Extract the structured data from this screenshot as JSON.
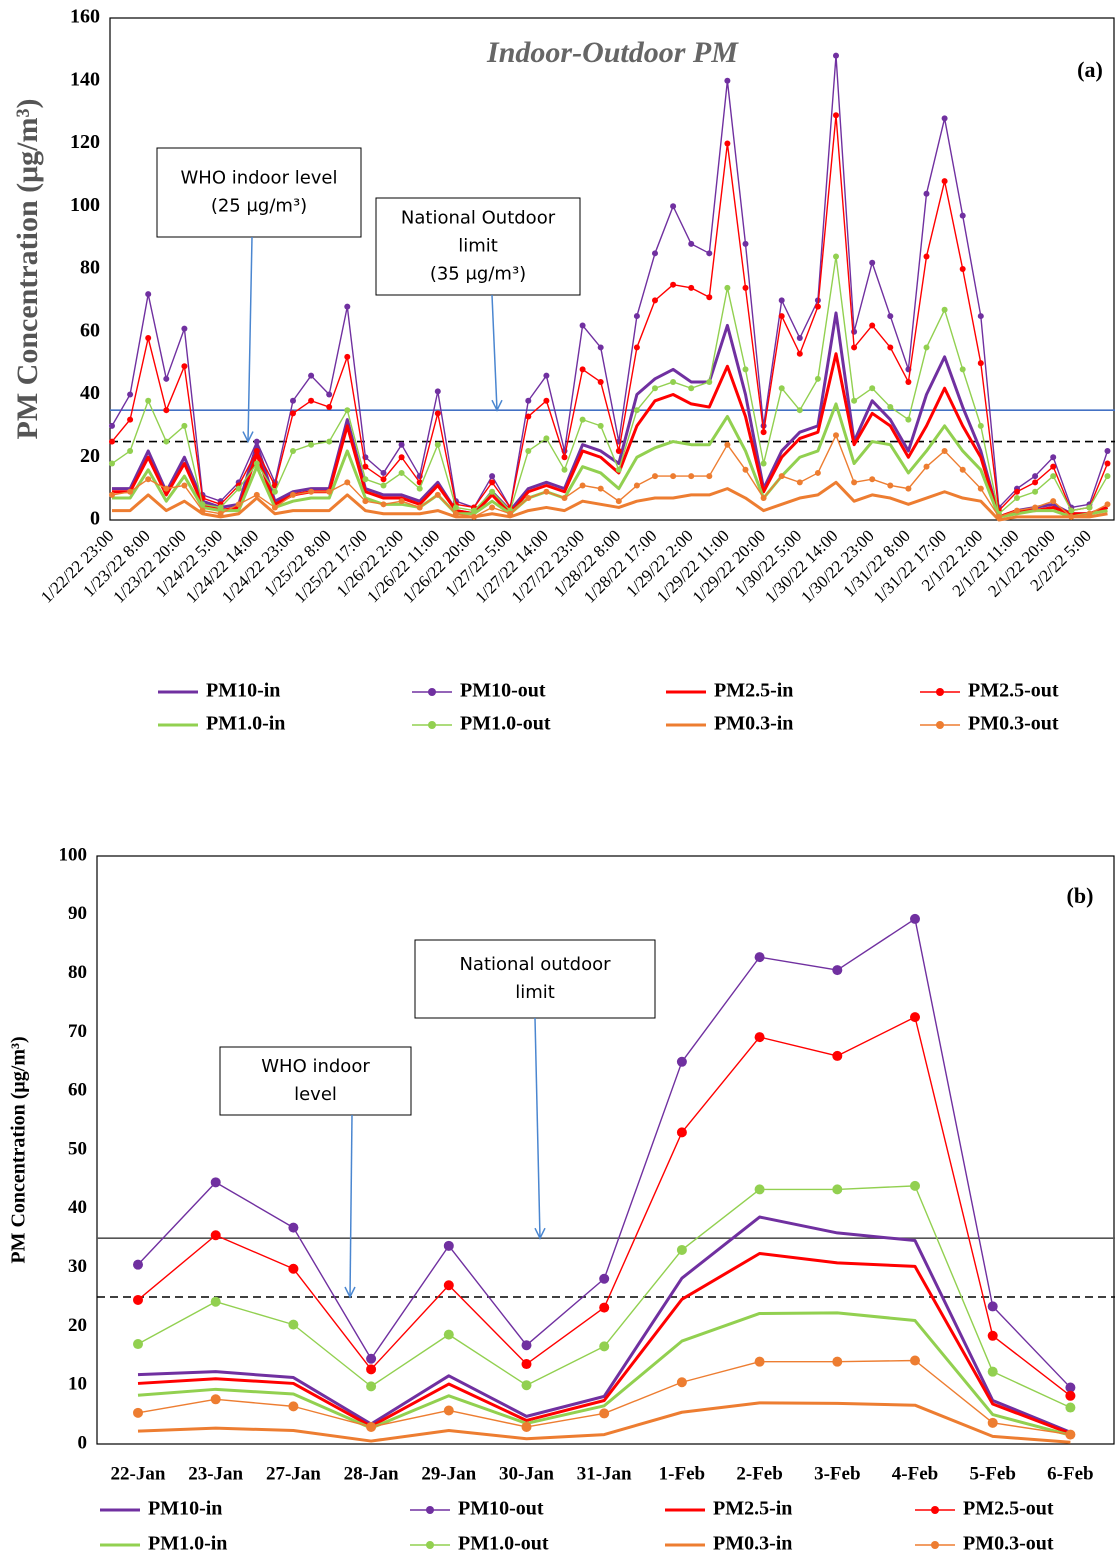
{
  "chart_data": [
    {
      "type": "line",
      "title": "Indoor-Outdoor PM",
      "panel_label": "(a)",
      "y_label": "PM Concentration (μg/m³)",
      "categories": [
        "1/22/22 23:00",
        null,
        "1/23/22 8:00",
        null,
        "1/23/22 20:00",
        null,
        "1/24/22 5:00",
        null,
        "1/24/22 14:00",
        null,
        "1/24/22 23:00",
        null,
        "1/25/22 8:00",
        null,
        "1/25/22 17:00",
        null,
        "1/26/22 2:00",
        null,
        "1/26/22 11:00",
        null,
        "1/26/22 20:00",
        null,
        "1/27/22 5:00",
        null,
        "1/27/22 14:00",
        null,
        "1/27/22 23:00",
        null,
        "1/28/22 8:00",
        null,
        "1/28/22 17:00",
        null,
        "1/29/22 2:00",
        null,
        "1/29/22 11:00",
        null,
        "1/29/22 20:00",
        null,
        "1/30/22 5:00",
        null,
        "1/30/22 14:00",
        null,
        "1/30/22 23:00",
        null,
        "1/31/22 8:00",
        null,
        "1/31/22 17:00",
        null,
        "2/1/22 2:00",
        null,
        "2/1/22 11:00",
        null,
        "2/1/22 20:00",
        null,
        "2/2/22 5:00",
        null
      ],
      "series": [
        {
          "name": "PM10-in",
          "color": "#7030a0",
          "marker": false,
          "values": [
            10,
            10,
            22,
            9,
            20,
            6,
            4,
            5,
            24,
            6,
            9,
            10,
            10,
            32,
            10,
            8,
            8,
            6,
            12,
            3,
            2,
            9,
            3,
            10,
            12,
            10,
            24,
            22,
            18,
            40,
            45,
            48,
            44,
            44,
            62,
            40,
            10,
            22,
            28,
            30,
            66,
            25,
            38,
            32,
            22,
            40,
            52,
            36,
            22,
            1,
            3,
            4,
            5,
            2,
            2,
            4
          ]
        },
        {
          "name": "PM10-out",
          "color": "#7030a0",
          "marker": true,
          "values": [
            30,
            40,
            72,
            45,
            61,
            8,
            6,
            12,
            25,
            12,
            38,
            46,
            40,
            68,
            20,
            15,
            24,
            14,
            41,
            6,
            4,
            14,
            4,
            38,
            46,
            22,
            62,
            55,
            25,
            65,
            85,
            100,
            88,
            85,
            140,
            88,
            30,
            70,
            58,
            70,
            148,
            60,
            82,
            65,
            48,
            104,
            128,
            97,
            65,
            4,
            10,
            14,
            20,
            4,
            5,
            22
          ]
        },
        {
          "name": "PM2.5-in",
          "color": "#ff0000",
          "marker": false,
          "values": [
            9,
            9,
            20,
            8,
            18,
            5,
            3,
            4,
            21,
            5,
            8,
            9,
            9,
            30,
            9,
            7,
            7,
            5,
            11,
            3,
            2,
            8,
            2,
            9,
            11,
            9,
            22,
            20,
            15,
            30,
            38,
            40,
            37,
            36,
            49,
            33,
            9,
            20,
            26,
            28,
            53,
            24,
            34,
            30,
            20,
            30,
            42,
            30,
            20,
            1,
            3,
            3,
            4,
            2,
            2,
            4
          ]
        },
        {
          "name": "PM2.5-out",
          "color": "#ff0000",
          "marker": true,
          "values": [
            25,
            32,
            58,
            35,
            49,
            7,
            5,
            11,
            22,
            11,
            34,
            38,
            36,
            52,
            17,
            13,
            20,
            12,
            34,
            5,
            4,
            12,
            4,
            33,
            38,
            20,
            48,
            44,
            22,
            55,
            70,
            75,
            74,
            71,
            120,
            74,
            28,
            65,
            53,
            68,
            129,
            55,
            62,
            55,
            44,
            84,
            108,
            80,
            50,
            3,
            9,
            12,
            17,
            3,
            4,
            18
          ]
        },
        {
          "name": "PM1.0-in",
          "color": "#92d050",
          "marker": false,
          "values": [
            7,
            7,
            16,
            6,
            14,
            4,
            3,
            3,
            17,
            4,
            6,
            7,
            7,
            22,
            7,
            5,
            5,
            4,
            8,
            2,
            2,
            6,
            2,
            7,
            9,
            7,
            17,
            15,
            10,
            20,
            23,
            25,
            24,
            24,
            33,
            22,
            7,
            14,
            20,
            22,
            37,
            18,
            25,
            24,
            15,
            22,
            30,
            22,
            16,
            1,
            2,
            3,
            3,
            1,
            2,
            3
          ]
        },
        {
          "name": "PM1.0-out",
          "color": "#92d050",
          "marker": true,
          "values": [
            18,
            22,
            38,
            25,
            30,
            5,
            4,
            10,
            18,
            9,
            22,
            24,
            25,
            35,
            13,
            11,
            15,
            10,
            24,
            4,
            3,
            9,
            3,
            22,
            26,
            16,
            32,
            30,
            16,
            35,
            42,
            44,
            42,
            44,
            74,
            48,
            18,
            42,
            35,
            45,
            84,
            38,
            42,
            36,
            32,
            55,
            67,
            48,
            30,
            2,
            7,
            9,
            14,
            3,
            4,
            14
          ]
        },
        {
          "name": "PM0.3-in",
          "color": "#ed7d31",
          "marker": false,
          "values": [
            3,
            3,
            8,
            3,
            6,
            2,
            1,
            2,
            7,
            2,
            3,
            3,
            3,
            8,
            3,
            2,
            2,
            2,
            3,
            1,
            1,
            2,
            1,
            3,
            4,
            3,
            6,
            5,
            4,
            6,
            7,
            7,
            8,
            8,
            10,
            7,
            3,
            5,
            7,
            8,
            12,
            6,
            8,
            7,
            5,
            7,
            9,
            7,
            6,
            0,
            1,
            1,
            1,
            1,
            1,
            2
          ]
        },
        {
          "name": "PM0.3-out",
          "color": "#ed7d31",
          "marker": true,
          "values": [
            8,
            9,
            13,
            10,
            11,
            3,
            2,
            5,
            8,
            4,
            8,
            9,
            9,
            12,
            6,
            5,
            6,
            4,
            8,
            2,
            1,
            4,
            2,
            7,
            9,
            7,
            11,
            10,
            6,
            11,
            14,
            14,
            14,
            14,
            24,
            16,
            7,
            14,
            12,
            15,
            27,
            12,
            13,
            11,
            10,
            17,
            22,
            16,
            10,
            1,
            3,
            4,
            6,
            1,
            2,
            5
          ]
        }
      ],
      "ylim": [
        0,
        160
      ],
      "yticks": [
        0,
        20,
        40,
        60,
        80,
        100,
        120,
        140,
        160
      ],
      "reference_lines": [
        {
          "value": 25,
          "color": "#000000",
          "dash": "8 5"
        },
        {
          "value": 35,
          "color": "#4472c4",
          "dash": "none"
        }
      ],
      "annotations": [
        {
          "lines": [
            "WHO indoor level",
            "(25 μg/m³)"
          ],
          "target": 25
        },
        {
          "lines": [
            "National Outdoor",
            "limit",
            "(35 μg/m³)"
          ],
          "target": 35
        }
      ],
      "legend": "bottom"
    },
    {
      "type": "line",
      "panel_label": "(b)",
      "y_label": "PM Concentration (μg/m³)",
      "categories": [
        "22-Jan",
        "23-Jan",
        "27-Jan",
        "28-Jan",
        "29-Jan",
        "30-Jan",
        "31-Jan",
        "1-Feb",
        "2-Feb",
        "3-Feb",
        "4-Feb",
        "5-Feb",
        "6-Feb"
      ],
      "series": [
        {
          "name": "PM10-in",
          "color": "#7030a0",
          "marker": false,
          "values": [
            11.8,
            12.3,
            11.3,
            3.4,
            11.6,
            4.7,
            8.1,
            28.2,
            38.6,
            35.9,
            34.6,
            7.4,
            2
          ]
        },
        {
          "name": "PM10-out",
          "color": "#7030a0",
          "marker": true,
          "values": [
            30.5,
            44.5,
            36.8,
            14.5,
            33.7,
            16.8,
            28.1,
            65,
            82.8,
            80.6,
            89.3,
            23.4,
            9.6
          ]
        },
        {
          "name": "PM2.5-in",
          "color": "#ff0000",
          "marker": false,
          "values": [
            10.3,
            11.1,
            10.3,
            3,
            10.2,
            4,
            7.4,
            24.6,
            32.4,
            30.8,
            30.2,
            6.8,
            1.8
          ]
        },
        {
          "name": "PM2.5-out",
          "color": "#ff0000",
          "marker": true,
          "values": [
            24.5,
            35.5,
            29.8,
            12.7,
            27,
            13.6,
            23.2,
            53,
            69.2,
            66,
            72.6,
            18.4,
            8.2
          ]
        },
        {
          "name": "PM1.0-in",
          "color": "#92d050",
          "marker": false,
          "values": [
            8.3,
            9.3,
            8.5,
            2.7,
            8.2,
            3.5,
            6.5,
            17.5,
            22.2,
            22.3,
            21,
            5,
            1.5
          ]
        },
        {
          "name": "PM1.0-out",
          "color": "#92d050",
          "marker": true,
          "values": [
            17,
            24.2,
            20.3,
            9.8,
            18.6,
            10,
            16.6,
            33,
            43.3,
            43.3,
            43.9,
            12.3,
            6.2
          ]
        },
        {
          "name": "PM0.3-in",
          "color": "#ed7d31",
          "marker": false,
          "values": [
            2.2,
            2.7,
            2.3,
            0.5,
            2.3,
            0.9,
            1.6,
            5.4,
            7,
            6.9,
            6.6,
            1.3,
            0.3
          ]
        },
        {
          "name": "PM0.3-out",
          "color": "#ed7d31",
          "marker": true,
          "values": [
            5.3,
            7.6,
            6.4,
            2.9,
            5.7,
            2.9,
            5.2,
            10.5,
            14,
            14,
            14.2,
            3.6,
            1.6
          ]
        }
      ],
      "ylim": [
        0,
        100
      ],
      "yticks": [
        0,
        10,
        20,
        30,
        40,
        50,
        60,
        70,
        80,
        90,
        100
      ],
      "reference_lines": [
        {
          "value": 25,
          "color": "#000000",
          "dash": "8 5"
        },
        {
          "value": 35,
          "color": "#555555",
          "dash": "none"
        }
      ],
      "annotations": [
        {
          "lines": [
            "WHO indoor",
            "level"
          ],
          "target": 25
        },
        {
          "lines": [
            "National outdoor",
            "limit"
          ],
          "target": 35
        }
      ],
      "legend": "bottom"
    }
  ]
}
